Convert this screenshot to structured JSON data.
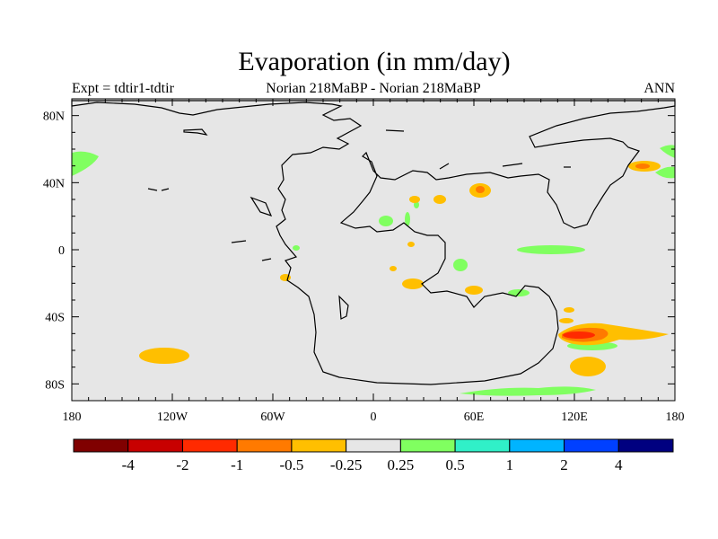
{
  "header": {
    "title": "Evaporation (in mm/day)",
    "experiment": "Expt = tdtir1-tdtir",
    "subtitle": "Norian   218MaBP - Norian   218MaBP",
    "season": "ANN"
  },
  "map": {
    "lon_labels": [
      "180",
      "120W",
      "60W",
      "0",
      "60E",
      "120E",
      "180"
    ],
    "lat_labels": [
      "80N",
      "40N",
      "0",
      "40S",
      "80S"
    ],
    "land_outline_color": "#000000",
    "ocean_fill_color": "#e6e6e6"
  },
  "colorbar": {
    "labels": [
      "-4",
      "-2",
      "-1",
      "-0.5",
      "-0.25",
      "0.25",
      "0.5",
      "1",
      "2",
      "4"
    ],
    "colors": [
      "#800000",
      "#c80000",
      "#ff2a00",
      "#ff7a00",
      "#ffbf00",
      "#e6e6e6",
      "#80ff60",
      "#30f0c8",
      "#00b4ff",
      "#0040ff",
      "#000080"
    ]
  },
  "chart_data": {
    "type": "heatmap",
    "title": "Evaporation (in mm/day)",
    "xlabel": "",
    "ylabel": "",
    "xlim": [
      -180,
      180
    ],
    "ylim": [
      -90,
      90
    ],
    "levels": [
      -4,
      -2,
      -1,
      -0.5,
      -0.25,
      0.25,
      0.5,
      1,
      2,
      4
    ]
  }
}
